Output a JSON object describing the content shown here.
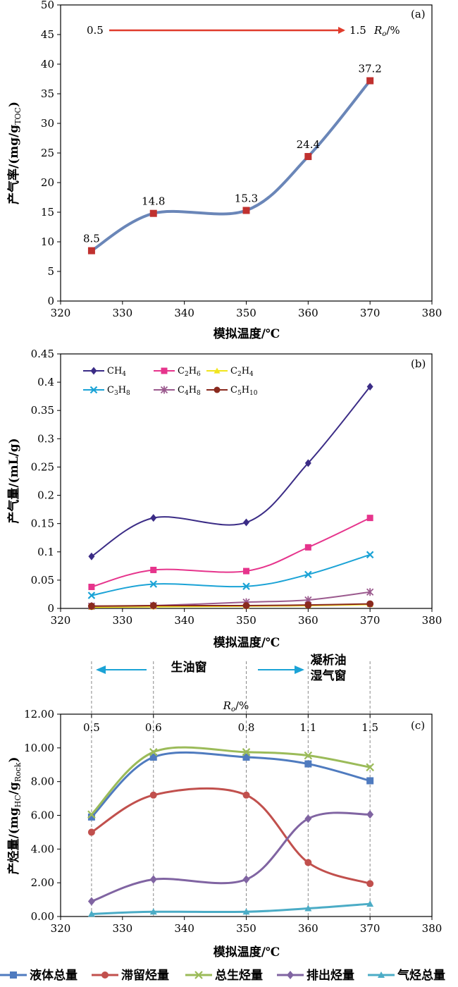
{
  "chart_data": [
    {
      "type": "line",
      "panel_label": "(a)",
      "xlabel": "模拟温度/℃",
      "ylabel": "产气率/(mg/gTOC)",
      "xlim": [
        320,
        380
      ],
      "ylim": [
        0,
        50
      ],
      "xticks": [
        320,
        330,
        340,
        350,
        360,
        370,
        380
      ],
      "yticks": [
        0,
        5,
        10,
        15,
        20,
        25,
        30,
        35,
        40,
        45,
        50
      ],
      "x": [
        325,
        335,
        350,
        360,
        370
      ],
      "series": [
        {
          "values": [
            8.5,
            14.8,
            15.3,
            24.4,
            37.2
          ],
          "color": "#6a86b8",
          "marker": "square",
          "marker_color": "#c0312f"
        }
      ],
      "data_labels": [
        "8.5",
        "14.8",
        "15.3",
        "24.4",
        "37.2"
      ],
      "annotation": {
        "start": "0.5",
        "end": "1.5",
        "label": "Ro/%",
        "arrow_color": "#e03c2c"
      }
    },
    {
      "type": "line",
      "panel_label": "(b)",
      "xlabel": "模拟温度/℃",
      "ylabel": "产气量/(mL/g)",
      "xlim": [
        320,
        380
      ],
      "ylim": [
        0,
        0.45
      ],
      "xticks": [
        320,
        330,
        340,
        350,
        360,
        370,
        380
      ],
      "yticks": [
        "0",
        "0.05",
        "0.1",
        "0.15",
        "0.2",
        "0.25",
        "0.3",
        "0.35",
        "0.4",
        "0.45"
      ],
      "x": [
        325,
        335,
        350,
        360,
        370
      ],
      "series": [
        {
          "name": "CH4",
          "values": [
            0.092,
            0.16,
            0.152,
            0.257,
            0.392
          ],
          "color": "#3b2c86",
          "marker": "diamond"
        },
        {
          "name": "C2H6",
          "values": [
            0.038,
            0.068,
            0.066,
            0.108,
            0.16
          ],
          "color": "#e6348c",
          "marker": "square"
        },
        {
          "name": "C2H4",
          "values": [
            0.002,
            0.003,
            0.004,
            0.005,
            0.007
          ],
          "color": "#f1e51c",
          "marker": "triangle"
        },
        {
          "name": "C3H8",
          "values": [
            0.023,
            0.043,
            0.039,
            0.06,
            0.095
          ],
          "color": "#1ba3d6",
          "marker": "x"
        },
        {
          "name": "C4H8",
          "values": [
            0.004,
            0.005,
            0.011,
            0.015,
            0.029
          ],
          "color": "#9b5a8e",
          "marker": "star"
        },
        {
          "name": "C5H10",
          "values": [
            0.004,
            0.005,
            0.005,
            0.006,
            0.008
          ],
          "color": "#8a2a1e",
          "marker": "circle"
        }
      ]
    },
    {
      "type": "line",
      "panel_label": "(c)",
      "xlabel": "模拟温度/℃",
      "ylabel": "产烃量/(mgHC/gRock)",
      "xlim": [
        320,
        380
      ],
      "ylim": [
        0,
        12
      ],
      "xticks": [
        320,
        330,
        340,
        350,
        360,
        370,
        380
      ],
      "yticks": [
        "0.00",
        "2.00",
        "4.00",
        "6.00",
        "8.00",
        "10.00",
        "12.00"
      ],
      "x": [
        325,
        335,
        350,
        360,
        370
      ],
      "series": [
        {
          "name": "液体总量",
          "values": [
            5.9,
            9.45,
            9.45,
            9.05,
            8.05
          ],
          "color": "#4f7bbf",
          "marker": "square"
        },
        {
          "name": "滞留烃量",
          "values": [
            5.0,
            7.2,
            7.2,
            3.2,
            1.95
          ],
          "color": "#c1504d",
          "marker": "circle"
        },
        {
          "name": "总生烃量",
          "values": [
            6.05,
            9.75,
            9.75,
            9.55,
            8.85
          ],
          "color": "#9bbb59",
          "marker": "x"
        },
        {
          "name": "排出烃量",
          "values": [
            0.9,
            2.2,
            2.2,
            5.8,
            6.05
          ],
          "color": "#8064a2",
          "marker": "diamond"
        },
        {
          "name": "气烃总量",
          "values": [
            0.15,
            0.28,
            0.28,
            0.48,
            0.75
          ],
          "color": "#4bacc6",
          "marker": "triangle"
        }
      ],
      "ro_axis": {
        "label": "Ro/%",
        "ticks": [
          [
            "0.5",
            325
          ],
          [
            "0.6",
            335
          ],
          [
            "0.8",
            350
          ],
          [
            "1.1",
            360
          ],
          [
            "1.5",
            370
          ]
        ]
      },
      "windows": {
        "oil": "生油窗",
        "condensate_line1": "凝析油",
        "condensate_line2": "湿气窗"
      }
    }
  ]
}
